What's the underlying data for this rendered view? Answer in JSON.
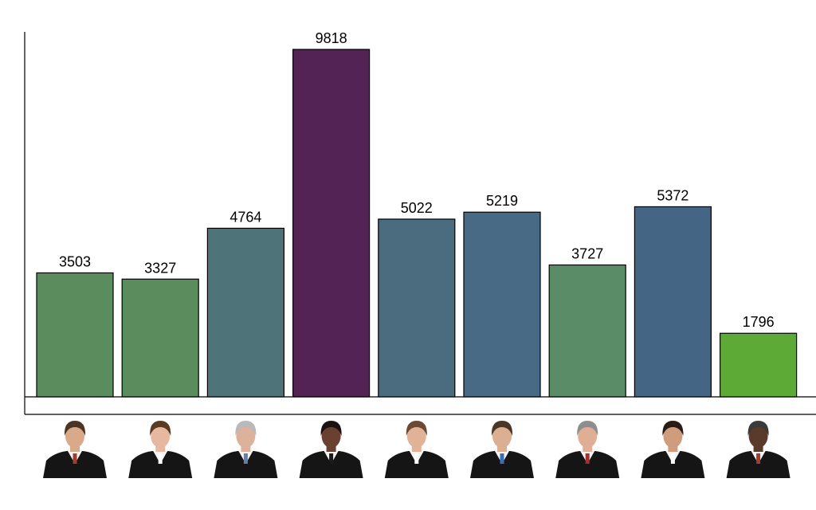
{
  "chart_data": {
    "type": "bar",
    "title": "",
    "xlabel": "",
    "ylabel": "",
    "ylim": [
      0,
      10000
    ],
    "grid": false,
    "legend": "none",
    "categories": [
      "",
      "",
      "",
      "",
      "",
      "",
      "",
      "",
      ""
    ],
    "values": [
      3503,
      3327,
      4764,
      9818,
      5022,
      5219,
      3727,
      5372,
      1796
    ],
    "value_labels": [
      "3503",
      "3327",
      "4764",
      "9818",
      "5022",
      "5219",
      "3727",
      "5372",
      "1796"
    ],
    "colors": [
      "#5b8c5e",
      "#5b8c5e",
      "#4e7378",
      "#532356",
      "#4b6b7e",
      "#486a85",
      "#5b8c68",
      "#456585",
      "#5dab36"
    ],
    "category_images": [
      {
        "icon": "justice-portrait-icon",
        "skin": "#d8a98a",
        "hair": "#4a3525",
        "tie": "#a33b2e"
      },
      {
        "icon": "justice-portrait-icon",
        "skin": "#e6b8a0",
        "hair": "#5a3a22",
        "tie": "#ffffff"
      },
      {
        "icon": "justice-portrait-icon",
        "skin": "#dcb29c",
        "hair": "#b9b9b9",
        "tie": "#6a7ea0"
      },
      {
        "icon": "justice-portrait-icon",
        "skin": "#6a4030",
        "hair": "#1a1210",
        "tie": "#1a1a1a"
      },
      {
        "icon": "justice-portrait-icon",
        "skin": "#e0b298",
        "hair": "#6b4a35",
        "tie": "#ffffff"
      },
      {
        "icon": "justice-portrait-icon",
        "skin": "#dcae92",
        "hair": "#4a3526",
        "tie": "#3b6db5"
      },
      {
        "icon": "justice-portrait-icon",
        "skin": "#e0ae94",
        "hair": "#8e8e8e",
        "tie": "#b02a2a"
      },
      {
        "icon": "justice-portrait-icon",
        "skin": "#cf9d7e",
        "hair": "#2a1c14",
        "tie": "#ffffff"
      },
      {
        "icon": "justice-portrait-icon",
        "skin": "#5a3a2a",
        "hair": "#3a3a3a",
        "tie": "#a33b2e"
      }
    ]
  }
}
